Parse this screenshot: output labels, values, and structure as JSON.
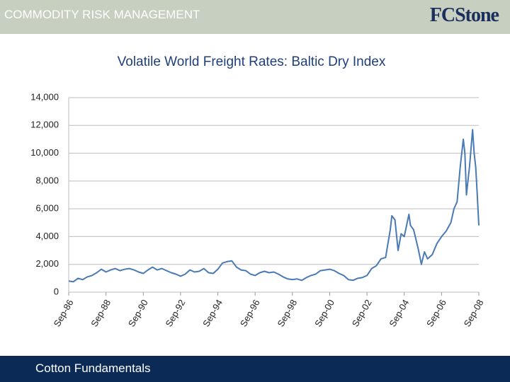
{
  "header": {
    "title": "COMMODITY RISK MANAGEMENT",
    "logo": "FCStone"
  },
  "footer": {
    "text": "Cotton Fundamentals"
  },
  "chart_data": {
    "type": "line",
    "title": "Volatile World Freight Rates:  Baltic Dry Index",
    "x": [
      "1986-09",
      "1986-12",
      "1987-03",
      "1987-06",
      "1987-09",
      "1987-12",
      "1988-03",
      "1988-06",
      "1988-09",
      "1988-12",
      "1989-03",
      "1989-06",
      "1989-09",
      "1989-12",
      "1990-03",
      "1990-06",
      "1990-09",
      "1990-12",
      "1991-03",
      "1991-06",
      "1991-09",
      "1991-12",
      "1992-03",
      "1992-06",
      "1992-09",
      "1992-12",
      "1993-03",
      "1993-06",
      "1993-09",
      "1993-12",
      "1994-03",
      "1994-06",
      "1994-09",
      "1994-12",
      "1995-03",
      "1995-06",
      "1995-09",
      "1995-12",
      "1996-03",
      "1996-06",
      "1996-09",
      "1996-12",
      "1997-03",
      "1997-06",
      "1997-09",
      "1997-12",
      "1998-03",
      "1998-06",
      "1998-09",
      "1998-12",
      "1999-03",
      "1999-06",
      "1999-09",
      "1999-12",
      "2000-03",
      "2000-06",
      "2000-09",
      "2000-12",
      "2001-03",
      "2001-06",
      "2001-09",
      "2001-12",
      "2002-03",
      "2002-06",
      "2002-09",
      "2002-12",
      "2003-03",
      "2003-06",
      "2003-09",
      "2003-12",
      "2004-01",
      "2004-03",
      "2004-05",
      "2004-07",
      "2004-09",
      "2004-12",
      "2005-01",
      "2005-03",
      "2005-06",
      "2005-08",
      "2005-10",
      "2005-12",
      "2006-03",
      "2006-06",
      "2006-09",
      "2006-12",
      "2007-03",
      "2007-05",
      "2007-07",
      "2007-09",
      "2007-11",
      "2007-12",
      "2008-01",
      "2008-02",
      "2008-03",
      "2008-05",
      "2008-06",
      "2008-07",
      "2008-08",
      "2008-09"
    ],
    "series": [
      {
        "name": "Baltic Dry Index",
        "color": "#4a7ab5",
        "values": [
          800,
          750,
          1000,
          900,
          1100,
          1200,
          1400,
          1650,
          1450,
          1600,
          1700,
          1550,
          1650,
          1700,
          1600,
          1450,
          1350,
          1600,
          1800,
          1600,
          1700,
          1550,
          1400,
          1300,
          1150,
          1300,
          1600,
          1450,
          1500,
          1700,
          1400,
          1350,
          1650,
          2100,
          2200,
          2250,
          1800,
          1600,
          1550,
          1300,
          1200,
          1400,
          1500,
          1400,
          1450,
          1300,
          1100,
          950,
          900,
          950,
          850,
          1050,
          1200,
          1300,
          1550,
          1600,
          1650,
          1550,
          1350,
          1200,
          900,
          850,
          1000,
          1050,
          1200,
          1700,
          1900,
          2400,
          2500,
          4500,
          5500,
          5200,
          3000,
          4200,
          4000,
          5600,
          4800,
          4500,
          3100,
          2000,
          2900,
          2400,
          2700,
          3500,
          4000,
          4400,
          5000,
          6000,
          6500,
          9000,
          11000,
          10000,
          7000,
          8000,
          9000,
          11700,
          10000,
          9000,
          7000,
          4800
        ]
      }
    ],
    "xticks": [
      {
        "value": "1986-09",
        "label": "Sep-86"
      },
      {
        "value": "1988-09",
        "label": "Sep-88"
      },
      {
        "value": "1990-09",
        "label": "Sep-90"
      },
      {
        "value": "1992-09",
        "label": "Sep-92"
      },
      {
        "value": "1994-09",
        "label": "Sep-94"
      },
      {
        "value": "1996-09",
        "label": "Sep-96"
      },
      {
        "value": "1998-09",
        "label": "Sep-98"
      },
      {
        "value": "2000-09",
        "label": "Sep-00"
      },
      {
        "value": "2002-09",
        "label": "Sep-02"
      },
      {
        "value": "2004-09",
        "label": "Sep-04"
      },
      {
        "value": "2006-09",
        "label": "Sep-06"
      },
      {
        "value": "2008-09",
        "label": "Sep-08"
      }
    ],
    "ylim": [
      0,
      14000
    ],
    "yticks": [
      0,
      {
        "value": 2000,
        "label": "2,000"
      },
      {
        "value": 4000,
        "label": "4,000"
      },
      {
        "value": 6000,
        "label": "6,000"
      },
      {
        "value": 8000,
        "label": "8,000"
      },
      {
        "value": 10000,
        "label": "10,000"
      },
      {
        "value": 12000,
        "label": "12,000"
      },
      {
        "value": 14000,
        "label": "14,000"
      }
    ],
    "grid": true
  }
}
